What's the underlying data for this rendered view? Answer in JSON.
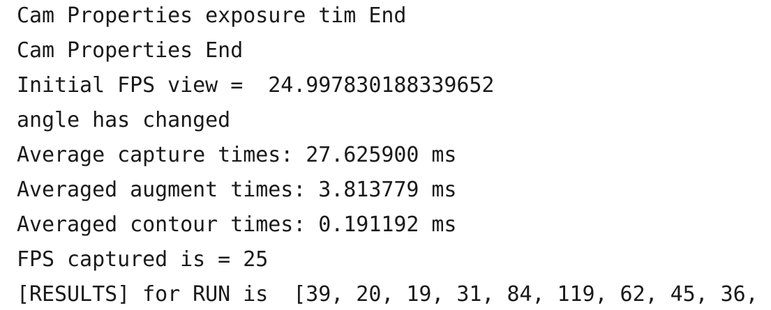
{
  "console": {
    "lines": [
      "Cam Properties exposure tim End",
      "Cam Properties End",
      "Initial FPS view =  24.997830188339652",
      "angle has changed",
      "Average capture times: 27.625900 ms",
      "Averaged augment times: 3.813779 ms",
      "Averaged contour times: 0.191192 ms",
      "FPS captured is = 25",
      "[RESULTS] for RUN is  [39, 20, 19, 31, 84, 119, 62, 45, 36, "
    ]
  },
  "colors": {
    "background": "#ffffff",
    "text": "#1a1a1a"
  }
}
